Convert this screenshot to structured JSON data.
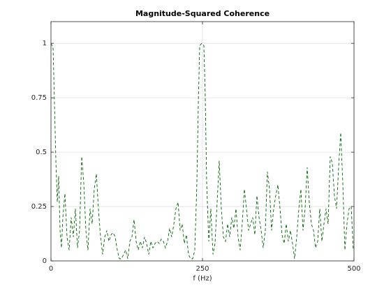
{
  "chart_data": {
    "type": "line",
    "title": "Magnitude-Squared Coherence",
    "x_label": "f (Hz)",
    "x": [
      0,
      3.5,
      5.8,
      8.1,
      10.4,
      12.7,
      15,
      17.3,
      19.6,
      23,
      26.5,
      30,
      33.4,
      36.9,
      40.3,
      43.8,
      47.2,
      50.7,
      54.1,
      57.6,
      61,
      64.5,
      68,
      71.4,
      74.9,
      78.3,
      81.8,
      85.2,
      88.7,
      92.2,
      95.6,
      99.1,
      102.5,
      106,
      109.4,
      112.9,
      116.4,
      119.8,
      123.3,
      126.7,
      130.2,
      133.6,
      137.1,
      140.5,
      144,
      147.5,
      150.9,
      154.4,
      157.8,
      161.3,
      164.7,
      168.2,
      171.6,
      175.1,
      178.6,
      182,
      185.5,
      188.9,
      192.4,
      195.8,
      199.3,
      202.8,
      206.2,
      209.7,
      213.1,
      216.6,
      220,
      223.5,
      226.9,
      230.4,
      233.9,
      237.3,
      240.8,
      243.1,
      245.4,
      248.8,
      252.3,
      254.6,
      256.9,
      260.4,
      263.8,
      267.3,
      270.7,
      274.2,
      277.6,
      281.1,
      284.5,
      288,
      291.5,
      294.9,
      298.4,
      301.8,
      305.3,
      308.7,
      312.2,
      315.6,
      319.1,
      322.6,
      326,
      329.5,
      332.9,
      336.4,
      339.8,
      343.3,
      346.8,
      350.2,
      353.7,
      357.1,
      360.6,
      364,
      367.5,
      370.9,
      374.4,
      377.9,
      381.3,
      384.8,
      388.2,
      391.7,
      395.1,
      398.6,
      402,
      405.5,
      409,
      412.4,
      415.9,
      419.3,
      422.8,
      426.2,
      429.7,
      433.2,
      436.6,
      440.1,
      443.5,
      447,
      450.4,
      453.9,
      457.3,
      460.8,
      464.3,
      467.7,
      471.2,
      474.6,
      478.1,
      481.5,
      485,
      488.4,
      491.9,
      495.4,
      498.8
    ],
    "values": [
      1.0,
      0.98,
      0.72,
      0.46,
      0.27,
      0.39,
      0.14,
      0.06,
      0.2,
      0.31,
      0.11,
      0.05,
      0.2,
      0.11,
      0.24,
      0.06,
      0.14,
      0.48,
      0.36,
      0.14,
      0.05,
      0.24,
      0.17,
      0.33,
      0.4,
      0.24,
      0.11,
      0.03,
      0.11,
      0.14,
      0.09,
      0.12,
      0.13,
      0.11,
      0.05,
      0.01,
      0.01,
      0.03,
      0.05,
      0.01,
      0.09,
      0.11,
      0.19,
      0.09,
      0.05,
      0.09,
      0.06,
      0.11,
      0.08,
      0.03,
      0.09,
      0.06,
      0.08,
      0.09,
      0.08,
      0.1,
      0.09,
      0.06,
      0.09,
      0.15,
      0.11,
      0.17,
      0.24,
      0.27,
      0.14,
      0.17,
      0.08,
      0.12,
      0.03,
      0.01,
      0.01,
      0.05,
      0.36,
      0.72,
      0.99,
      1.0,
      0.99,
      0.75,
      0.36,
      0.09,
      0.24,
      0.03,
      0.08,
      0.27,
      0.46,
      0.24,
      0.11,
      0.09,
      0.17,
      0.11,
      0.2,
      0.15,
      0.24,
      0.11,
      0.05,
      0.17,
      0.33,
      0.24,
      0.14,
      0.17,
      0.2,
      0.12,
      0.3,
      0.2,
      0.14,
      0.06,
      0.14,
      0.41,
      0.33,
      0.14,
      0.24,
      0.3,
      0.35,
      0.24,
      0.12,
      0.08,
      0.17,
      0.09,
      0.14,
      0.08,
      0.01,
      0.11,
      0.24,
      0.33,
      0.14,
      0.24,
      0.43,
      0.27,
      0.17,
      0.14,
      0.06,
      0.09,
      0.24,
      0.09,
      0.17,
      0.24,
      0.17,
      0.48,
      0.45,
      0.3,
      0.24,
      0.43,
      0.59,
      0.36,
      0.05,
      0.17,
      0.24,
      0.25,
      0.05
    ],
    "color": "#006400",
    "line_style": "dashed",
    "xlim": [
      0,
      500
    ],
    "xticks": [
      0,
      250,
      500
    ],
    "ylim": [
      0,
      1.1
    ],
    "yticks": [
      0,
      0.25,
      0.5,
      0.75,
      1
    ],
    "grid": true
  }
}
